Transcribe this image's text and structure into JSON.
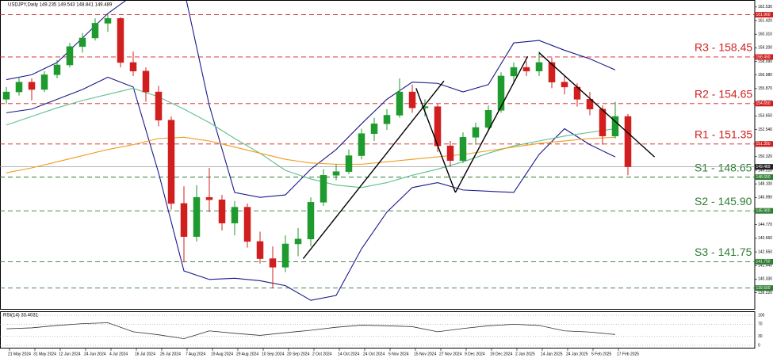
{
  "chart_data": {
    "type": "candlestick",
    "title": "USDJPY,Daily  149.235 149.543 148.841 149.489",
    "x_labels": [
      "21 May 2024",
      "31 May 2024",
      "12 Jun 2024",
      "24 Jun 2024",
      "4 Jul 2024",
      "16 Jul 2024",
      "26 Jul 2024",
      "7 Aug 2024",
      "19 Aug 2024",
      "29 Aug 2024",
      "10 Sep 2024",
      "20 Sep 2024",
      "2 Oct 2024",
      "14 Oct 2024",
      "24 Oct 2024",
      "5 Nov 2024",
      "15 Nov 2024",
      "27 Nov 2024",
      "9 Dec 2024",
      "19 Dec 2024",
      "2 Jan 2025",
      "14 Jan 2025",
      "24 Jan 2025",
      "5 Feb 2025",
      "17 Feb 2025"
    ],
    "ohlc": [
      [
        155.0,
        156.0,
        154.6,
        155.6
      ],
      [
        155.6,
        156.8,
        155.3,
        156.4
      ],
      [
        156.4,
        156.7,
        154.9,
        155.8
      ],
      [
        155.8,
        157.3,
        155.6,
        157.0
      ],
      [
        157.0,
        158.2,
        156.7,
        157.8
      ],
      [
        157.8,
        159.6,
        157.6,
        159.3
      ],
      [
        159.3,
        160.4,
        158.8,
        160.0
      ],
      [
        160.0,
        161.6,
        159.8,
        161.2
      ],
      [
        161.2,
        161.9,
        160.5,
        161.6
      ],
      [
        161.6,
        161.7,
        157.6,
        158.0
      ],
      [
        158.0,
        158.9,
        156.9,
        157.3
      ],
      [
        157.3,
        157.6,
        154.8,
        155.6
      ],
      [
        155.6,
        156.1,
        152.8,
        153.3
      ],
      [
        153.3,
        153.6,
        146.0,
        146.5
      ],
      [
        146.5,
        147.9,
        141.7,
        143.8
      ],
      [
        143.8,
        148.0,
        143.4,
        147.0
      ],
      [
        147.0,
        149.4,
        145.8,
        146.8
      ],
      [
        146.8,
        147.2,
        144.3,
        144.9
      ],
      [
        144.9,
        146.7,
        143.9,
        146.2
      ],
      [
        146.2,
        146.5,
        142.9,
        143.4
      ],
      [
        143.4,
        144.2,
        141.6,
        142.0
      ],
      [
        142.0,
        143.0,
        139.6,
        141.3
      ],
      [
        141.3,
        143.9,
        140.9,
        143.2
      ],
      [
        143.2,
        144.5,
        142.2,
        143.6
      ],
      [
        143.6,
        147.0,
        143.0,
        146.6
      ],
      [
        146.6,
        149.3,
        146.3,
        148.8
      ],
      [
        148.8,
        149.7,
        148.4,
        149.1
      ],
      [
        149.1,
        150.9,
        148.9,
        150.4
      ],
      [
        150.4,
        152.6,
        150.1,
        152.2
      ],
      [
        152.2,
        153.5,
        151.6,
        153.0
      ],
      [
        153.0,
        154.2,
        152.5,
        153.7
      ],
      [
        153.7,
        156.7,
        153.5,
        155.6
      ],
      [
        155.6,
        156.2,
        153.9,
        154.3
      ],
      [
        154.3,
        155.0,
        153.6,
        154.4
      ],
      [
        154.4,
        154.6,
        150.7,
        151.2
      ],
      [
        151.2,
        151.6,
        149.5,
        150.0
      ],
      [
        150.0,
        152.3,
        149.8,
        151.9
      ],
      [
        151.9,
        153.1,
        151.3,
        152.7
      ],
      [
        152.7,
        154.5,
        152.4,
        154.1
      ],
      [
        154.1,
        157.2,
        153.9,
        156.9
      ],
      [
        156.9,
        158.0,
        156.4,
        157.6
      ],
      [
        157.6,
        158.1,
        156.9,
        157.3
      ],
      [
        157.3,
        158.9,
        156.9,
        158.0
      ],
      [
        158.0,
        158.4,
        155.9,
        156.4
      ],
      [
        156.4,
        156.9,
        155.4,
        156.0
      ],
      [
        156.0,
        156.3,
        154.4,
        155.0
      ],
      [
        155.0,
        155.6,
        153.7,
        154.2
      ],
      [
        154.2,
        154.5,
        151.3,
        152.0
      ],
      [
        152.0,
        154.8,
        151.8,
        153.6
      ],
      [
        153.6,
        153.8,
        148.8,
        149.5
      ]
    ],
    "up_color": "#1f9a2e",
    "down_color": "#d11f1f",
    "ylim": [
      137.9,
      163.1
    ],
    "yticks": [
      {
        "value": 162.53,
        "label": "162.530"
      },
      {
        "value": 161.42,
        "label": "161.420"
      },
      {
        "value": 160.31,
        "label": "160.310"
      },
      {
        "value": 159.2,
        "label": "159.200"
      },
      {
        "value": 158.09,
        "label": "158.090"
      },
      {
        "value": 156.98,
        "label": "156.980"
      },
      {
        "value": 155.87,
        "label": "155.870"
      },
      {
        "value": 154.76,
        "label": "154.760"
      },
      {
        "value": 153.65,
        "label": "153.650"
      },
      {
        "value": 152.54,
        "label": "152.540"
      },
      {
        "value": 151.43,
        "label": "151.430"
      },
      {
        "value": 150.32,
        "label": "150.320"
      },
      {
        "value": 149.21,
        "label": "149.210"
      },
      {
        "value": 148.1,
        "label": "148.100"
      },
      {
        "value": 146.99,
        "label": "146.990"
      },
      {
        "value": 145.88,
        "label": "145.880"
      },
      {
        "value": 144.77,
        "label": "144.770"
      },
      {
        "value": 143.66,
        "label": "143.660"
      },
      {
        "value": 142.55,
        "label": "142.550"
      },
      {
        "value": 141.44,
        "label": "141.440"
      },
      {
        "value": 140.33,
        "label": "140.330"
      },
      {
        "value": 139.22,
        "label": "139.220"
      }
    ],
    "last_price": {
      "value": 149.489,
      "label": "149.489"
    },
    "levels": [
      {
        "value": 161.9,
        "label": "161.900",
        "color": "#d11f1f"
      },
      {
        "name": "R3 - 158.45",
        "value": 158.45,
        "label": "158.450",
        "color": "#d11f1f"
      },
      {
        "name": "R2 - 154.65",
        "value": 154.65,
        "label": "154.650",
        "color": "#d11f1f"
      },
      {
        "name": "R1 - 151.35",
        "value": 151.35,
        "label": "151.350",
        "color": "#d11f1f"
      },
      {
        "name": "S1 - 148.65",
        "value": 148.65,
        "label": "148.650",
        "color": "#2e7d32"
      },
      {
        "name": "S2 - 145.90",
        "value": 145.9,
        "label": "145.900",
        "color": "#2e7d32"
      },
      {
        "name": "S3 - 141.75",
        "value": 141.75,
        "label": "141.750",
        "color": "#2e7d32"
      },
      {
        "value": 139.6,
        "label": "139.600",
        "color": "#2e7d32"
      }
    ],
    "overlay_x": [
      0,
      2,
      4,
      6,
      8,
      10,
      12,
      14,
      16,
      18,
      20,
      22,
      24,
      26,
      28,
      30,
      32,
      34,
      36,
      38,
      40,
      42,
      44,
      46,
      48
    ],
    "overlays": [
      {
        "color": "#1a1a8c",
        "values": [
          156.6,
          157.0,
          158.0,
          160.0,
          162.0,
          163.5,
          164.5,
          164.0,
          154.5,
          147.4,
          147.0,
          147.2,
          149.3,
          150.9,
          153.0,
          155.0,
          156.4,
          156.3,
          155.6,
          156.2,
          159.6,
          159.8,
          159.0,
          158.3,
          157.4
        ]
      },
      {
        "color": "#1a1a8c",
        "values": [
          153.9,
          154.2,
          155.0,
          155.8,
          156.8,
          156.0,
          149.0,
          141.0,
          140.3,
          140.4,
          140.2,
          139.8,
          138.6,
          139.0,
          142.8,
          145.8,
          147.8,
          148.2,
          147.6,
          147.5,
          147.4,
          150.5,
          152.6,
          151.3,
          150.3
        ]
      },
      {
        "color": "#5fbf8f",
        "values": [
          152.9,
          153.6,
          154.3,
          154.9,
          155.4,
          155.9,
          155.2,
          154.2,
          153.1,
          151.8,
          150.6,
          149.2,
          148.5,
          148.0,
          147.8,
          148.2,
          148.8,
          149.3,
          149.9,
          150.6,
          151.2,
          151.6,
          152.0,
          152.3,
          152.6
        ]
      },
      {
        "color": "#f29a1e",
        "values": [
          149.0,
          149.4,
          149.9,
          150.4,
          150.9,
          151.3,
          151.8,
          151.9,
          151.6,
          151.1,
          150.6,
          150.1,
          149.8,
          149.7,
          149.7,
          149.9,
          150.1,
          150.3,
          150.5,
          150.8,
          151.1,
          151.4,
          151.6,
          151.8,
          151.9
        ]
      }
    ],
    "trendlines": [
      {
        "x": [
          23.4,
          34.5
        ],
        "y": [
          142.0,
          156.5
        ]
      },
      {
        "x": [
          32.3,
          35.4
        ],
        "y": [
          155.9,
          147.4
        ]
      },
      {
        "x": [
          35.4,
          41.1
        ],
        "y": [
          147.4,
          158.5
        ]
      },
      {
        "x": [
          42.0,
          51.1
        ],
        "y": [
          158.8,
          150.3
        ]
      }
    ],
    "rsi": {
      "title": "RSI(14) 33.4031",
      "color": "#333333",
      "ylim": [
        0,
        100
      ],
      "yticks": [
        0,
        30,
        70,
        100
      ],
      "values": [
        55,
        58,
        66,
        72,
        75,
        45,
        35,
        22,
        48,
        40,
        33,
        42,
        50,
        60,
        67,
        65,
        62,
        45,
        56,
        65,
        70,
        66,
        48,
        44,
        36
      ]
    }
  }
}
